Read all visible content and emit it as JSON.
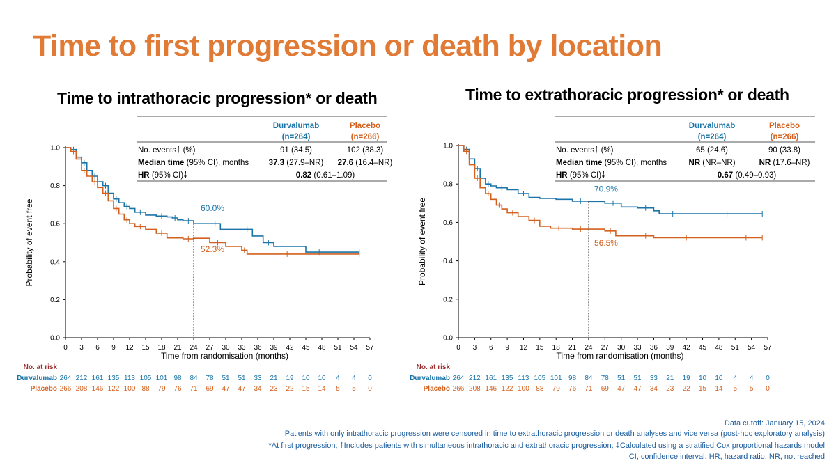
{
  "page": {
    "title": "Time to first progression or death by location",
    "footnotes": [
      "Data cutoff: January 15, 2024",
      "Patients with only intrathoracic progression were censored in time to extrathoracic progression or death analyses and vice versa (post-hoc exploratory analysis)",
      "*At first progression; †Includes patients with simultaneous intrathoracic and extrathoracic progression; ‡Calculated using a stratified Cox proportional hazards model",
      "CI, confidence interval; HR, hazard ratio; NR, not reached"
    ]
  },
  "colors": {
    "durvalumab": "#1a74a8",
    "placebo": "#d3601e",
    "title": "#e07a34",
    "risk_label": "#9c2b2b"
  },
  "chart_data": [
    {
      "type": "line",
      "title": "Time to intrathoracic progression* or death",
      "xlabel": "Time from randomisation (months)",
      "ylabel": "Probability of event free",
      "xlim": [
        0,
        57
      ],
      "ylim": [
        0,
        1.0
      ],
      "xticks": [
        0,
        3,
        6,
        9,
        12,
        15,
        18,
        21,
        24,
        27,
        30,
        33,
        36,
        39,
        42,
        45,
        48,
        51,
        54,
        57
      ],
      "yticks": [
        0.0,
        0.2,
        0.4,
        0.6,
        0.8,
        1.0
      ],
      "series": [
        {
          "name": "Durvalumab",
          "color": "#1a74a8",
          "points": [
            [
              0,
              1.0
            ],
            [
              1,
              0.99
            ],
            [
              2,
              0.95
            ],
            [
              3,
              0.92
            ],
            [
              4,
              0.88
            ],
            [
              5,
              0.85
            ],
            [
              6,
              0.82
            ],
            [
              7,
              0.8
            ],
            [
              8,
              0.76
            ],
            [
              9,
              0.73
            ],
            [
              10,
              0.71
            ],
            [
              11,
              0.69
            ],
            [
              12,
              0.68
            ],
            [
              13,
              0.66
            ],
            [
              15,
              0.645
            ],
            [
              17,
              0.64
            ],
            [
              19,
              0.635
            ],
            [
              20,
              0.63
            ],
            [
              21,
              0.62
            ],
            [
              22,
              0.615
            ],
            [
              24,
              0.6
            ],
            [
              27,
              0.6
            ],
            [
              29,
              0.57
            ],
            [
              33,
              0.57
            ],
            [
              35,
              0.535
            ],
            [
              37,
              0.5
            ],
            [
              39,
              0.48
            ],
            [
              45,
              0.45
            ],
            [
              50,
              0.45
            ],
            [
              55,
              0.45
            ]
          ]
        },
        {
          "name": "Placebo",
          "color": "#d3601e",
          "points": [
            [
              0,
              1.0
            ],
            [
              1,
              0.98
            ],
            [
              2,
              0.94
            ],
            [
              3,
              0.88
            ],
            [
              4,
              0.85
            ],
            [
              5,
              0.82
            ],
            [
              6,
              0.79
            ],
            [
              7,
              0.76
            ],
            [
              8,
              0.72
            ],
            [
              9,
              0.68
            ],
            [
              10,
              0.65
            ],
            [
              11,
              0.62
            ],
            [
              12,
              0.6
            ],
            [
              13,
              0.585
            ],
            [
              15,
              0.57
            ],
            [
              17,
              0.55
            ],
            [
              19,
              0.525
            ],
            [
              22,
              0.52
            ],
            [
              24,
              0.523
            ],
            [
              27,
              0.5
            ],
            [
              30,
              0.48
            ],
            [
              33,
              0.46
            ],
            [
              34,
              0.44
            ],
            [
              38,
              0.44
            ],
            [
              45,
              0.44
            ],
            [
              50,
              0.44
            ],
            [
              55,
              0.44
            ]
          ]
        }
      ],
      "annotations": [
        {
          "label": "60.0%",
          "x": 24,
          "y": 0.6,
          "series": "Durvalumab"
        },
        {
          "label": "52.3%",
          "x": 24,
          "y": 0.523,
          "series": "Placebo"
        }
      ],
      "stats_table": {
        "col_headers": [
          {
            "name": "Durvalumab",
            "n": "(n=264)"
          },
          {
            "name": "Placebo",
            "n": "(n=266)"
          }
        ],
        "rows": [
          {
            "label_bold": "",
            "label": "No. events† (%)",
            "d_bold": "",
            "d": "91 (34.5)",
            "p_bold": "",
            "p": "102 (38.3)"
          },
          {
            "label_bold": "Median time",
            "label": " (95% CI), months",
            "d_bold": "37.3",
            "d": " (27.9–NR)",
            "p_bold": "27.6",
            "p": " (16.4–NR)"
          },
          {
            "label_bold": "HR",
            "label": " (95% CI)‡",
            "hr_bold": "0.82",
            "hr": " (0.61–1.09)"
          }
        ]
      },
      "risk_table": {
        "header": "No. at risk",
        "rows": [
          {
            "name": "Durvalumab",
            "values": [
              "264",
              "212",
              "161",
              "135",
              "113",
              "105",
              "101",
              "98",
              "84",
              "78",
              "51",
              "51",
              "33",
              "21",
              "19",
              "10",
              "10",
              "4",
              "4",
              "0"
            ]
          },
          {
            "name": "Placebo",
            "values": [
              "266",
              "208",
              "146",
              "122",
              "100",
              "88",
              "79",
              "76",
              "71",
              "69",
              "47",
              "47",
              "34",
              "23",
              "22",
              "15",
              "14",
              "5",
              "5",
              "0"
            ]
          }
        ]
      }
    },
    {
      "type": "line",
      "title": "Time to extrathoracic progression* or death",
      "xlabel": "Time from randomisation (months)",
      "ylabel": "Probability of event free",
      "xlim": [
        0,
        57
      ],
      "ylim": [
        0,
        1.0
      ],
      "xticks": [
        0,
        3,
        6,
        9,
        12,
        15,
        18,
        21,
        24,
        27,
        30,
        33,
        36,
        39,
        42,
        45,
        48,
        51,
        54,
        57
      ],
      "yticks": [
        0.0,
        0.2,
        0.4,
        0.6,
        0.8,
        1.0
      ],
      "series": [
        {
          "name": "Durvalumab",
          "color": "#1a74a8",
          "points": [
            [
              0,
              1.0
            ],
            [
              1,
              0.98
            ],
            [
              2,
              0.93
            ],
            [
              3,
              0.88
            ],
            [
              4,
              0.83
            ],
            [
              5,
              0.8
            ],
            [
              6,
              0.79
            ],
            [
              7,
              0.78
            ],
            [
              9,
              0.77
            ],
            [
              11,
              0.75
            ],
            [
              13,
              0.73
            ],
            [
              15,
              0.725
            ],
            [
              18,
              0.72
            ],
            [
              21,
              0.71
            ],
            [
              24,
              0.709
            ],
            [
              27,
              0.7
            ],
            [
              30,
              0.68
            ],
            [
              33,
              0.675
            ],
            [
              36,
              0.66
            ],
            [
              37,
              0.645
            ],
            [
              42,
              0.645
            ],
            [
              48,
              0.645
            ],
            [
              51,
              0.645
            ],
            [
              56,
              0.645
            ]
          ]
        },
        {
          "name": "Placebo",
          "color": "#d3601e",
          "points": [
            [
              0,
              1.0
            ],
            [
              1,
              0.97
            ],
            [
              2,
              0.9
            ],
            [
              3,
              0.83
            ],
            [
              4,
              0.78
            ],
            [
              5,
              0.75
            ],
            [
              6,
              0.72
            ],
            [
              7,
              0.69
            ],
            [
              8,
              0.67
            ],
            [
              9,
              0.65
            ],
            [
              11,
              0.63
            ],
            [
              13,
              0.61
            ],
            [
              15,
              0.58
            ],
            [
              17,
              0.57
            ],
            [
              20,
              0.57
            ],
            [
              21,
              0.565
            ],
            [
              24,
              0.565
            ],
            [
              27,
              0.555
            ],
            [
              29,
              0.53
            ],
            [
              33,
              0.53
            ],
            [
              36,
              0.52
            ],
            [
              39,
              0.52
            ],
            [
              45,
              0.52
            ],
            [
              50,
              0.52
            ],
            [
              56,
              0.52
            ]
          ]
        }
      ],
      "annotations": [
        {
          "label": "70.9%",
          "x": 24,
          "y": 0.709,
          "series": "Durvalumab"
        },
        {
          "label": "56.5%",
          "x": 24,
          "y": 0.565,
          "series": "Placebo"
        }
      ],
      "stats_table": {
        "col_headers": [
          {
            "name": "Durvalumab",
            "n": "(n=264)"
          },
          {
            "name": "Placebo",
            "n": "(n=266)"
          }
        ],
        "rows": [
          {
            "label_bold": "",
            "label": "No. events† (%)",
            "d_bold": "",
            "d": "65 (24.6)",
            "p_bold": "",
            "p": "90 (33.8)"
          },
          {
            "label_bold": "Median time",
            "label": " (95% CI), months",
            "d_bold": "NR",
            "d": " (NR–NR)",
            "p_bold": "NR",
            "p": " (17.6–NR)"
          },
          {
            "label_bold": "HR",
            "label": " (95% CI)‡",
            "hr_bold": "0.67",
            "hr": " (0.49–0.93)"
          }
        ]
      },
      "risk_table": {
        "header": "No. at risk",
        "rows": [
          {
            "name": "Durvalumab",
            "values": [
              "264",
              "212",
              "161",
              "135",
              "113",
              "105",
              "101",
              "98",
              "84",
              "78",
              "51",
              "51",
              "33",
              "21",
              "19",
              "10",
              "10",
              "4",
              "4",
              "0"
            ]
          },
          {
            "name": "Placebo",
            "values": [
              "266",
              "208",
              "146",
              "122",
              "100",
              "88",
              "79",
              "76",
              "71",
              "69",
              "47",
              "47",
              "34",
              "23",
              "22",
              "15",
              "14",
              "5",
              "5",
              "0"
            ]
          }
        ]
      }
    }
  ]
}
